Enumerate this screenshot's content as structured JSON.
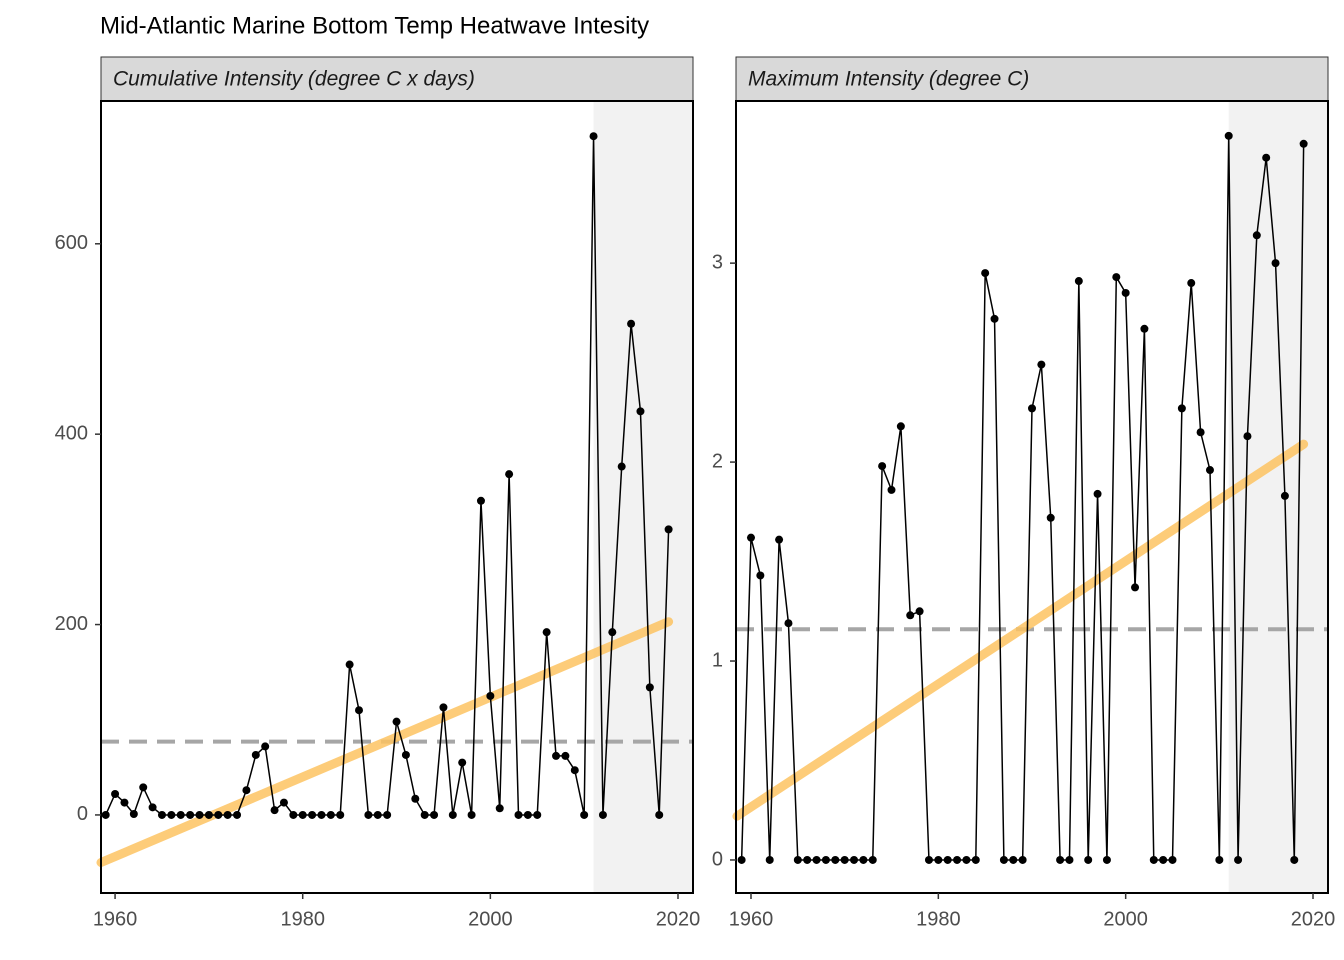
{
  "title": "Mid-Atlantic Marine Bottom Temp Heatwave Intesity",
  "chart_data": [
    {
      "type": "line",
      "subtitle": "Cumulative Intensity (degree C x days)",
      "x": [
        1959,
        1960,
        1961,
        1962,
        1963,
        1964,
        1965,
        1966,
        1967,
        1968,
        1969,
        1970,
        1971,
        1972,
        1973,
        1974,
        1975,
        1976,
        1977,
        1978,
        1979,
        1980,
        1981,
        1982,
        1983,
        1984,
        1985,
        1986,
        1987,
        1988,
        1989,
        1990,
        1991,
        1992,
        1993,
        1994,
        1995,
        1996,
        1997,
        1998,
        1999,
        2000,
        2001,
        2002,
        2003,
        2004,
        2005,
        2006,
        2007,
        2008,
        2009,
        2010,
        2011,
        2012,
        2013,
        2014,
        2015,
        2016,
        2017,
        2018,
        2019
      ],
      "values": [
        0,
        22,
        13,
        1,
        29,
        8,
        0,
        0,
        0,
        0,
        0,
        0,
        0,
        0,
        0,
        26,
        63,
        72,
        5,
        13,
        0,
        0,
        0,
        0,
        0,
        0,
        158,
        110,
        0,
        0,
        0,
        98,
        63,
        17,
        0,
        0,
        113,
        0,
        55,
        0,
        330,
        125,
        7,
        358,
        0,
        0,
        0,
        192,
        62,
        62,
        47,
        0,
        713,
        0,
        192,
        366,
        516,
        424,
        134,
        0,
        300
      ],
      "color": "#000000",
      "xlim": [
        1958.5,
        2021.6
      ],
      "ylim": [
        -82,
        750
      ],
      "xticks": [
        1960,
        1980,
        2000,
        2020
      ],
      "yticks": [
        0,
        200,
        400,
        600
      ],
      "trend": {
        "x": [
          1958.5,
          2019
        ],
        "values": [
          -50,
          203
        ],
        "color": "#fdc462"
      },
      "mean": 77,
      "mean_color": "#a6a6a6",
      "highlight_start": 2011,
      "highlight_color": "#f2f2f2"
    },
    {
      "type": "line",
      "subtitle": "Maximum Intensity (degree C)",
      "x": [
        1959,
        1960,
        1961,
        1962,
        1963,
        1964,
        1965,
        1966,
        1967,
        1968,
        1969,
        1970,
        1971,
        1972,
        1973,
        1974,
        1975,
        1976,
        1977,
        1978,
        1979,
        1980,
        1981,
        1982,
        1983,
        1984,
        1985,
        1986,
        1987,
        1988,
        1989,
        1990,
        1991,
        1992,
        1993,
        1994,
        1995,
        1996,
        1997,
        1998,
        1999,
        2000,
        2001,
        2002,
        2003,
        2004,
        2005,
        2006,
        2007,
        2008,
        2009,
        2010,
        2011,
        2012,
        2013,
        2014,
        2015,
        2016,
        2017,
        2018,
        2019
      ],
      "values": [
        0,
        1.62,
        1.43,
        0,
        1.61,
        1.19,
        0,
        0,
        0,
        0,
        0,
        0,
        0,
        0,
        0,
        1.98,
        1.86,
        2.18,
        1.23,
        1.25,
        0,
        0,
        0,
        0,
        0,
        0,
        2.95,
        2.72,
        0,
        0,
        0,
        2.27,
        2.49,
        1.72,
        0,
        0,
        2.91,
        0,
        1.84,
        0,
        2.93,
        2.85,
        1.37,
        2.67,
        0,
        0,
        0,
        2.27,
        2.9,
        2.15,
        1.96,
        0,
        3.64,
        0,
        2.13,
        3.14,
        3.53,
        3,
        1.83,
        0,
        3.6
      ],
      "color": "#000000",
      "xlim": [
        1958.4,
        2021.6
      ],
      "ylim": [
        -0.166,
        3.815
      ],
      "xticks": [
        1960,
        1980,
        2000,
        2020
      ],
      "yticks": [
        0,
        1,
        2,
        3
      ],
      "trend": {
        "x": [
          1958.5,
          2019
        ],
        "values": [
          0.22,
          2.09
        ],
        "color": "#fdc462"
      },
      "mean": 1.16,
      "mean_color": "#a6a6a6",
      "highlight_start": 2011,
      "highlight_color": "#f2f2f2"
    }
  ]
}
